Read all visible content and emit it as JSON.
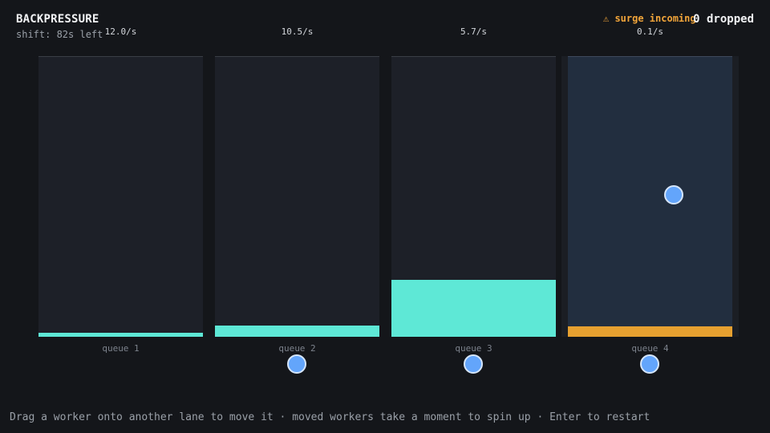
{
  "header": {
    "title": "BACKPRESSURE",
    "timer": "shift: 82s left",
    "warning": "⚠ surge incoming",
    "dropped": "0 dropped"
  },
  "colors": {
    "fill_normal": "#5ee8d6",
    "fill_alert": "#e6a030",
    "worker": "#63a5fb"
  },
  "lanes": [
    {
      "label": "queue 1",
      "rate": "12.0/s",
      "fill_fraction": 0.014,
      "fill_color": "normal",
      "highlight": false
    },
    {
      "label": "queue 2",
      "rate": "10.5/s",
      "fill_fraction": 0.04,
      "fill_color": "normal",
      "highlight": false
    },
    {
      "label": "queue 3",
      "rate": "5.7/s",
      "fill_fraction": 0.203,
      "fill_color": "normal",
      "highlight": false
    },
    {
      "label": "queue 4",
      "rate": "0.1/s",
      "fill_fraction": 0.037,
      "fill_color": "alert",
      "highlight": true
    }
  ],
  "workers": [
    {
      "lane": 1,
      "state": "active"
    },
    {
      "lane": 2,
      "state": "active"
    },
    {
      "lane": 3,
      "state": "active"
    },
    {
      "lane": 3,
      "state": "moving"
    }
  ],
  "footer": {
    "hint": "Drag a worker onto another lane to move it · moved workers take a moment to spin up · Enter to restart"
  }
}
